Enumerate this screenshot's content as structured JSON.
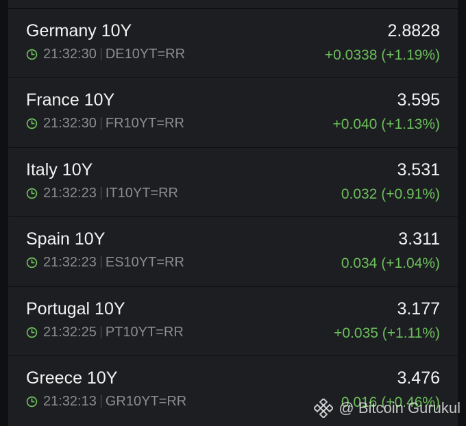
{
  "rows": [
    {
      "name": "Germany 10Y",
      "time": "21:32:30",
      "ric": "DE10YT=RR",
      "price": "2.8828",
      "change": "+0.0338 (+1.19%)"
    },
    {
      "name": "France 10Y",
      "time": "21:32:30",
      "ric": "FR10YT=RR",
      "price": "3.595",
      "change": "+0.040 (+1.13%)"
    },
    {
      "name": "Italy 10Y",
      "time": "21:32:23",
      "ric": "IT10YT=RR",
      "price": "3.531",
      "change": "0.032 (+0.91%)"
    },
    {
      "name": "Spain 10Y",
      "time": "21:32:23",
      "ric": "ES10YT=RR",
      "price": "3.311",
      "change": "0.034 (+1.04%)"
    },
    {
      "name": "Portugal 10Y",
      "time": "21:32:25",
      "ric": "PT10YT=RR",
      "price": "3.177",
      "change": "+0.035 (+1.11%)"
    },
    {
      "name": "Greece 10Y",
      "time": "21:32:13",
      "ric": "GR10YT=RR",
      "price": "3.476",
      "change": "0.016 (+0.46%)"
    }
  ],
  "watermark": {
    "text": "@ Bitcoin Gurukul",
    "icon": "binance-logo-icon"
  },
  "colors": {
    "positive": "#6dbe5c",
    "background": "#1c1e21"
  },
  "icons": {
    "time": "clock-icon"
  }
}
